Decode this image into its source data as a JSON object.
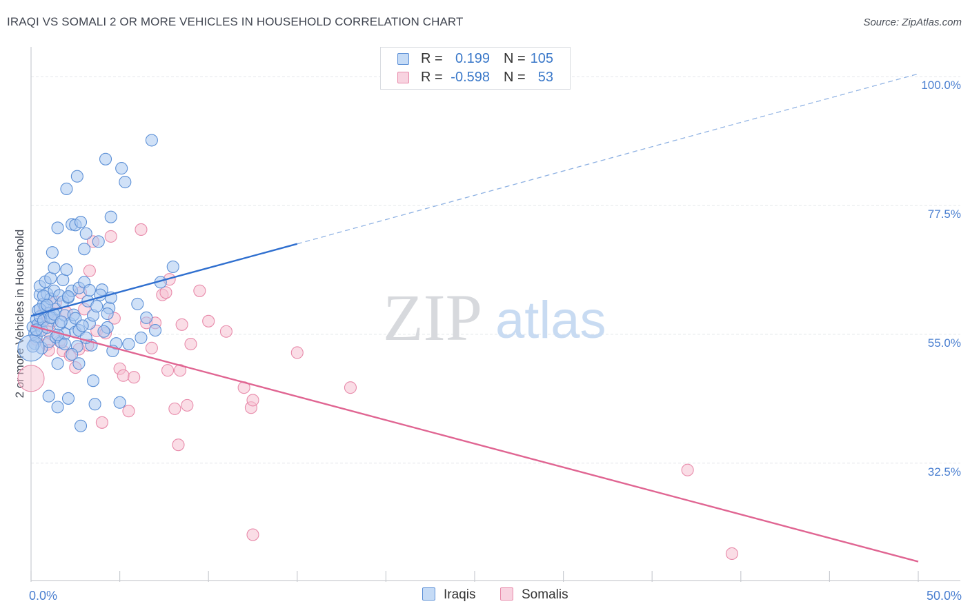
{
  "title": "IRAQI VS SOMALI 2 OR MORE VEHICLES IN HOUSEHOLD CORRELATION CHART",
  "source": "Source: ZipAtlas.com",
  "watermark": {
    "zip": "ZIP",
    "atlas": "atlas"
  },
  "legend": {
    "rows": [
      {
        "r_label": "R =",
        "r_value": "0.199",
        "n_label": "N =",
        "n_value": "105"
      },
      {
        "r_label": "R =",
        "r_value": "-0.598",
        "n_label": "N =",
        "n_value": "53"
      }
    ]
  },
  "colors": {
    "iraqis_fill": "#a9c8f0",
    "iraqis_stroke": "#5b8fd6",
    "iraqis_line": "#2f6fcf",
    "somalis_fill": "#f5c1d2",
    "somalis_stroke": "#e88aaa",
    "somalis_line": "#e06592",
    "axis_label": "#4a7fd0",
    "grid": "#e3e6ea"
  },
  "chart_data": {
    "type": "scatter",
    "title": "IRAQI VS SOMALI 2 OR MORE VEHICLES IN HOUSEHOLD CORRELATION CHART",
    "xlabel": "",
    "ylabel": "2 or more Vehicles in Household",
    "xlim": [
      0,
      50
    ],
    "ylim": [
      12,
      104
    ],
    "x_tick_labels": [
      {
        "value": 0,
        "label": "0.0%"
      },
      {
        "value": 50,
        "label": "50.0%"
      }
    ],
    "y_tick_labels": [
      {
        "value": 100,
        "label": "100.0%"
      },
      {
        "value": 77.5,
        "label": "77.5%"
      },
      {
        "value": 55,
        "label": "55.0%"
      },
      {
        "value": 32.5,
        "label": "32.5%"
      }
    ],
    "legend_position": "top-center",
    "series": [
      {
        "name": "Iraqis",
        "r": 0.199,
        "n": 105,
        "trend": {
          "x0": 0,
          "y0": 58.2,
          "x1": 15,
          "y1": 70.8,
          "dashed_to_x": 50,
          "dashed_to_y": 100.5
        },
        "points": [
          [
            0.1,
            56.3
          ],
          [
            0.2,
            55.1
          ],
          [
            0.2,
            53.4
          ],
          [
            0.3,
            57.6
          ],
          [
            0.3,
            54.6
          ],
          [
            0.4,
            59.2
          ],
          [
            0.4,
            56.8
          ],
          [
            0.5,
            61.9
          ],
          [
            0.5,
            58.1
          ],
          [
            0.5,
            63.4
          ],
          [
            0.6,
            55.7
          ],
          [
            0.6,
            52.6
          ],
          [
            0.7,
            60.3
          ],
          [
            0.7,
            57.4
          ],
          [
            0.8,
            64.2
          ],
          [
            0.8,
            59.8
          ],
          [
            0.9,
            56.2
          ],
          [
            0.9,
            62.1
          ],
          [
            1.0,
            58.7
          ],
          [
            1.0,
            53.7
          ],
          [
            1.1,
            64.8
          ],
          [
            1.1,
            61.2
          ],
          [
            1.2,
            57.9
          ],
          [
            1.2,
            69.3
          ],
          [
            1.3,
            66.6
          ],
          [
            1.3,
            62.6
          ],
          [
            1.4,
            59.4
          ],
          [
            1.4,
            54.5
          ],
          [
            1.5,
            73.6
          ],
          [
            1.5,
            49.9
          ],
          [
            1.6,
            61.8
          ],
          [
            1.6,
            56.7
          ],
          [
            1.7,
            53.6
          ],
          [
            1.8,
            64.5
          ],
          [
            1.8,
            60.7
          ],
          [
            1.9,
            58.3
          ],
          [
            1.9,
            55.1
          ],
          [
            2.0,
            80.4
          ],
          [
            2.0,
            66.3
          ],
          [
            2.1,
            43.8
          ],
          [
            2.1,
            61.4
          ],
          [
            2.2,
            56.9
          ],
          [
            2.3,
            74.2
          ],
          [
            2.3,
            62.6
          ],
          [
            2.4,
            58.4
          ],
          [
            2.5,
            74.1
          ],
          [
            2.5,
            55.4
          ],
          [
            2.6,
            82.6
          ],
          [
            2.6,
            52.9
          ],
          [
            2.7,
            63.1
          ],
          [
            2.7,
            49.9
          ],
          [
            2.8,
            74.6
          ],
          [
            3.0,
            64.1
          ],
          [
            3.0,
            69.9
          ],
          [
            3.1,
            72.6
          ],
          [
            3.2,
            60.8
          ],
          [
            3.3,
            56.9
          ],
          [
            3.4,
            53.1
          ],
          [
            3.5,
            46.9
          ],
          [
            3.6,
            42.8
          ],
          [
            3.8,
            71.2
          ],
          [
            4.0,
            62.8
          ],
          [
            4.2,
            85.6
          ],
          [
            4.3,
            56.2
          ],
          [
            4.4,
            59.6
          ],
          [
            4.5,
            61.4
          ],
          [
            4.5,
            75.5
          ],
          [
            4.8,
            53.4
          ],
          [
            5.0,
            43.1
          ],
          [
            5.1,
            84.0
          ],
          [
            5.3,
            81.6
          ],
          [
            6.0,
            60.3
          ],
          [
            6.5,
            57.9
          ],
          [
            6.8,
            88.9
          ],
          [
            7.0,
            55.7
          ],
          [
            7.3,
            64.1
          ],
          [
            8.0,
            66.8
          ],
          [
            1.0,
            44.2
          ],
          [
            1.5,
            42.3
          ],
          [
            2.8,
            39.0
          ],
          [
            0.1,
            52.9
          ],
          [
            0.3,
            55.8
          ],
          [
            0.5,
            59.4
          ],
          [
            0.7,
            61.7
          ],
          [
            0.9,
            60.1
          ],
          [
            1.1,
            57.9
          ],
          [
            1.3,
            58.5
          ],
          [
            1.5,
            54.9
          ],
          [
            1.7,
            57.2
          ],
          [
            1.9,
            53.3
          ],
          [
            2.1,
            61.6
          ],
          [
            2.3,
            51.5
          ],
          [
            2.5,
            57.8
          ],
          [
            2.7,
            55.7
          ],
          [
            2.9,
            56.5
          ],
          [
            3.1,
            54.4
          ],
          [
            3.3,
            62.7
          ],
          [
            3.5,
            58.3
          ],
          [
            3.7,
            59.9
          ],
          [
            3.9,
            61.9
          ],
          [
            4.1,
            55.5
          ],
          [
            4.3,
            58.6
          ],
          [
            4.6,
            52.1
          ],
          [
            5.5,
            53.3
          ],
          [
            6.2,
            54.4
          ]
        ],
        "large_point": [
          0.0,
          52.6
        ]
      },
      {
        "name": "Somalis",
        "r": -0.598,
        "n": 53,
        "trend": {
          "x0": 0,
          "y0": 56.5,
          "x1": 50,
          "y1": 15.3
        },
        "points": [
          [
            0.3,
            54.1
          ],
          [
            0.5,
            56.8
          ],
          [
            0.7,
            58.9
          ],
          [
            0.9,
            53.2
          ],
          [
            1.0,
            55.4
          ],
          [
            1.2,
            57.3
          ],
          [
            1.4,
            60.6
          ],
          [
            1.6,
            53.8
          ],
          [
            1.8,
            52.1
          ],
          [
            2.0,
            58.8
          ],
          [
            2.2,
            51.3
          ],
          [
            2.5,
            49.2
          ],
          [
            2.7,
            52.4
          ],
          [
            2.8,
            62.3
          ],
          [
            3.0,
            59.4
          ],
          [
            3.2,
            53.1
          ],
          [
            3.3,
            66.1
          ],
          [
            3.5,
            71.2
          ],
          [
            3.7,
            55.6
          ],
          [
            4.0,
            39.6
          ],
          [
            4.2,
            55.2
          ],
          [
            4.5,
            72.1
          ],
          [
            4.7,
            57.8
          ],
          [
            5.0,
            49.0
          ],
          [
            5.2,
            47.8
          ],
          [
            5.5,
            41.6
          ],
          [
            5.8,
            47.5
          ],
          [
            6.2,
            73.3
          ],
          [
            6.5,
            57.0
          ],
          [
            6.8,
            52.6
          ],
          [
            7.0,
            57.0
          ],
          [
            7.4,
            61.9
          ],
          [
            7.6,
            62.3
          ],
          [
            7.7,
            48.7
          ],
          [
            7.8,
            64.6
          ],
          [
            8.1,
            42.0
          ],
          [
            8.3,
            35.7
          ],
          [
            8.4,
            48.7
          ],
          [
            8.8,
            42.6
          ],
          [
            9.0,
            53.3
          ],
          [
            9.5,
            62.6
          ],
          [
            10.0,
            57.3
          ],
          [
            11.0,
            55.5
          ],
          [
            12.0,
            45.7
          ],
          [
            12.4,
            42.2
          ],
          [
            12.5,
            43.5
          ],
          [
            15.0,
            51.8
          ],
          [
            18.0,
            45.7
          ],
          [
            37.0,
            31.3
          ],
          [
            12.5,
            20.0
          ],
          [
            39.5,
            16.7
          ],
          [
            8.5,
            56.7
          ],
          [
            1.0,
            52.2
          ]
        ],
        "large_point": [
          0.0,
          47.3
        ]
      }
    ]
  },
  "bottom_legend": {
    "items": [
      "Iraqis",
      "Somalis"
    ]
  }
}
